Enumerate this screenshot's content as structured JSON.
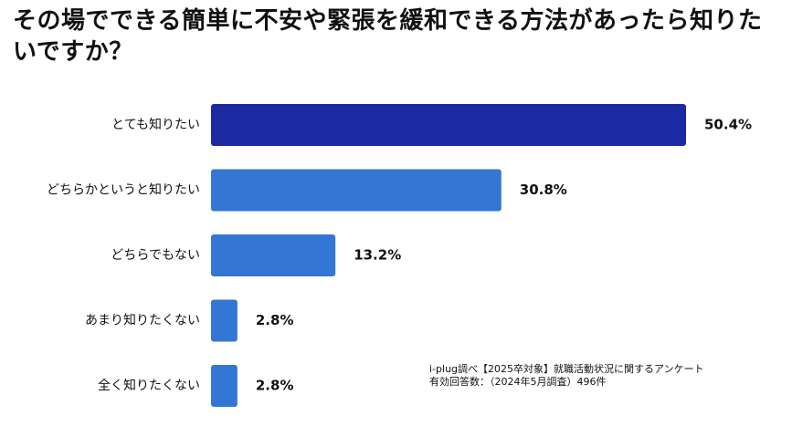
{
  "title": "その場でできる簡単に不安や緊張を緩和できる方法があったら知りたいですか？",
  "note": {
    "line1": "i-plug調べ【2025卒対象】就職活動状況に関するアンケート",
    "line2": "有効回答数：（2024年5月調査）496件"
  },
  "chart_data": {
    "type": "bar",
    "orientation": "horizontal",
    "title": "その場でできる簡単に不安や緊張を緩和できる方法があったら知りたいですか？",
    "categories": [
      "とても知りたい",
      "どちらかというと知りたい",
      "どちらでもない",
      "あまり知りたくない",
      "全く知りたくない"
    ],
    "values": [
      50.4,
      30.8,
      13.2,
      2.8,
      2.8
    ],
    "value_labels": [
      "50.4%",
      "30.8%",
      "13.2%",
      "2.8%",
      "2.8%"
    ],
    "colors": [
      "#1b2aa3",
      "#3476d4",
      "#3476d4",
      "#3476d4",
      "#3476d4"
    ],
    "xlim": [
      0,
      50.4
    ],
    "grid": false,
    "legend": "none"
  }
}
